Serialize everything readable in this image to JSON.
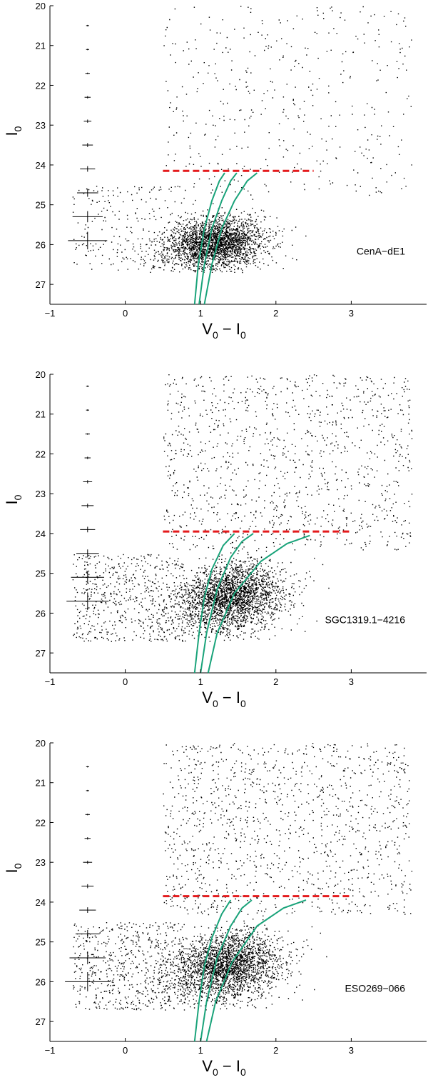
{
  "chart_data": [
    {
      "type": "scatter",
      "label": "CenA−dE1",
      "xlabel_main": "V",
      "xlabel_sub1": "0",
      "xlabel_mid": " − I",
      "xlabel_sub2": "0",
      "ylabel_main": "I",
      "ylabel_sub": "0",
      "xlim": [
        -1,
        4
      ],
      "ylim": [
        20,
        27.5
      ],
      "y_inverted": true,
      "x_ticks": [
        -1,
        0,
        1,
        2,
        3
      ],
      "y_ticks": [
        20,
        21,
        22,
        23,
        24,
        25,
        26,
        27
      ],
      "trgb": {
        "mag": 24.15,
        "x_range": [
          0.5,
          2.5
        ]
      },
      "cloud": {
        "n_core": 2600,
        "n_sparse": 420,
        "center": [
          1.05,
          25.95
        ],
        "spread": [
          0.42,
          0.45
        ],
        "core_top": 24.2
      },
      "isochrones": [
        {
          "points": [
            [
              0.92,
              27.5
            ],
            [
              0.97,
              26.5
            ],
            [
              1.05,
              25.6
            ],
            [
              1.15,
              24.9
            ],
            [
              1.25,
              24.4
            ],
            [
              1.32,
              24.2
            ]
          ]
        },
        {
          "points": [
            [
              0.98,
              27.5
            ],
            [
              1.05,
              26.5
            ],
            [
              1.15,
              25.6
            ],
            [
              1.28,
              24.9
            ],
            [
              1.4,
              24.4
            ],
            [
              1.48,
              24.2
            ]
          ]
        },
        {
          "points": [
            [
              1.05,
              27.5
            ],
            [
              1.15,
              26.5
            ],
            [
              1.28,
              25.6
            ],
            [
              1.45,
              24.9
            ],
            [
              1.62,
              24.4
            ],
            [
              1.75,
              24.2
            ]
          ]
        }
      ],
      "errors": [
        {
          "mag": 20.5,
          "xerr": 0.01,
          "yerr": 0.01
        },
        {
          "mag": 21.1,
          "xerr": 0.02,
          "yerr": 0.01
        },
        {
          "mag": 21.7,
          "xerr": 0.03,
          "yerr": 0.02
        },
        {
          "mag": 22.3,
          "xerr": 0.04,
          "yerr": 0.03
        },
        {
          "mag": 22.9,
          "xerr": 0.05,
          "yerr": 0.04
        },
        {
          "mag": 23.5,
          "xerr": 0.07,
          "yerr": 0.05
        },
        {
          "mag": 24.1,
          "xerr": 0.1,
          "yerr": 0.07
        },
        {
          "mag": 24.7,
          "xerr": 0.14,
          "yerr": 0.1
        },
        {
          "mag": 25.3,
          "xerr": 0.2,
          "yerr": 0.14
        },
        {
          "mag": 25.9,
          "xerr": 0.26,
          "yerr": 0.22
        }
      ]
    },
    {
      "type": "scatter",
      "label": "SGC1319.1−4216",
      "xlabel_main": "V",
      "xlabel_sub1": "0",
      "xlabel_mid": " − I",
      "xlabel_sub2": "0",
      "ylabel_main": "I",
      "ylabel_sub": "0",
      "xlim": [
        -1,
        4
      ],
      "ylim": [
        20,
        27.5
      ],
      "y_inverted": true,
      "x_ticks": [
        -1,
        0,
        1,
        2,
        3
      ],
      "y_ticks": [
        20,
        21,
        22,
        23,
        24,
        25,
        26,
        27
      ],
      "trgb": {
        "mag": 23.95,
        "x_range": [
          0.5,
          3.0
        ]
      },
      "cloud": {
        "n_core": 16000,
        "n_sparse": 1100,
        "center": [
          1.2,
          25.6
        ],
        "spread": [
          0.45,
          0.6
        ],
        "core_top": 23.8
      },
      "isochrones": [
        {
          "points": [
            [
              0.92,
              27.5
            ],
            [
              0.98,
              26.5
            ],
            [
              1.05,
              25.6
            ],
            [
              1.15,
              24.9
            ],
            [
              1.3,
              24.3
            ],
            [
              1.45,
              24.0
            ]
          ]
        },
        {
          "points": [
            [
              1.0,
              27.5
            ],
            [
              1.08,
              26.5
            ],
            [
              1.22,
              25.4
            ],
            [
              1.4,
              24.6
            ],
            [
              1.55,
              24.2
            ],
            [
              1.7,
              24.0
            ]
          ]
        },
        {
          "points": [
            [
              1.1,
              27.5
            ],
            [
              1.22,
              26.5
            ],
            [
              1.45,
              25.5
            ],
            [
              1.8,
              24.7
            ],
            [
              2.15,
              24.25
            ],
            [
              2.45,
              24.05
            ]
          ]
        }
      ],
      "errors": [
        {
          "mag": 20.3,
          "xerr": 0.01,
          "yerr": 0.01
        },
        {
          "mag": 20.9,
          "xerr": 0.02,
          "yerr": 0.01
        },
        {
          "mag": 21.5,
          "xerr": 0.03,
          "yerr": 0.02
        },
        {
          "mag": 22.1,
          "xerr": 0.04,
          "yerr": 0.03
        },
        {
          "mag": 22.7,
          "xerr": 0.06,
          "yerr": 0.04
        },
        {
          "mag": 23.3,
          "xerr": 0.08,
          "yerr": 0.05
        },
        {
          "mag": 23.9,
          "xerr": 0.1,
          "yerr": 0.07
        },
        {
          "mag": 24.5,
          "xerr": 0.15,
          "yerr": 0.1
        },
        {
          "mag": 25.1,
          "xerr": 0.22,
          "yerr": 0.15
        },
        {
          "mag": 25.7,
          "xerr": 0.28,
          "yerr": 0.22
        }
      ]
    },
    {
      "type": "scatter",
      "label": "ESO269−066",
      "xlabel_main": "V",
      "xlabel_sub1": "0",
      "xlabel_mid": " − I",
      "xlabel_sub2": "0",
      "ylabel_main": "I",
      "ylabel_sub": "0",
      "xlim": [
        -1,
        4
      ],
      "ylim": [
        20,
        27.5
      ],
      "y_inverted": true,
      "x_ticks": [
        -1,
        0,
        1,
        2,
        3
      ],
      "y_ticks": [
        20,
        21,
        22,
        23,
        24,
        25,
        26,
        27
      ],
      "trgb": {
        "mag": 23.85,
        "x_range": [
          0.5,
          3.0
        ]
      },
      "cloud": {
        "n_core": 18000,
        "n_sparse": 1200,
        "center": [
          1.15,
          25.6
        ],
        "spread": [
          0.45,
          0.6
        ],
        "core_top": 23.7
      },
      "isochrones": [
        {
          "points": [
            [
              0.92,
              27.5
            ],
            [
              0.98,
              26.5
            ],
            [
              1.05,
              25.6
            ],
            [
              1.15,
              24.9
            ],
            [
              1.28,
              24.3
            ],
            [
              1.4,
              23.95
            ]
          ]
        },
        {
          "points": [
            [
              1.0,
              27.5
            ],
            [
              1.08,
              26.5
            ],
            [
              1.22,
              25.4
            ],
            [
              1.4,
              24.6
            ],
            [
              1.55,
              24.15
            ],
            [
              1.68,
              23.95
            ]
          ]
        },
        {
          "points": [
            [
              1.08,
              27.5
            ],
            [
              1.2,
              26.5
            ],
            [
              1.42,
              25.5
            ],
            [
              1.75,
              24.6
            ],
            [
              2.1,
              24.15
            ],
            [
              2.4,
              23.95
            ]
          ]
        }
      ],
      "errors": [
        {
          "mag": 20.6,
          "xerr": 0.01,
          "yerr": 0.01
        },
        {
          "mag": 21.2,
          "xerr": 0.02,
          "yerr": 0.01
        },
        {
          "mag": 21.8,
          "xerr": 0.03,
          "yerr": 0.02
        },
        {
          "mag": 22.4,
          "xerr": 0.04,
          "yerr": 0.03
        },
        {
          "mag": 23.0,
          "xerr": 0.06,
          "yerr": 0.04
        },
        {
          "mag": 23.6,
          "xerr": 0.08,
          "yerr": 0.05
        },
        {
          "mag": 24.2,
          "xerr": 0.11,
          "yerr": 0.07
        },
        {
          "mag": 24.8,
          "xerr": 0.16,
          "yerr": 0.1
        },
        {
          "mag": 25.4,
          "xerr": 0.24,
          "yerr": 0.16
        },
        {
          "mag": 26.0,
          "xerr": 0.3,
          "yerr": 0.24
        }
      ]
    }
  ]
}
